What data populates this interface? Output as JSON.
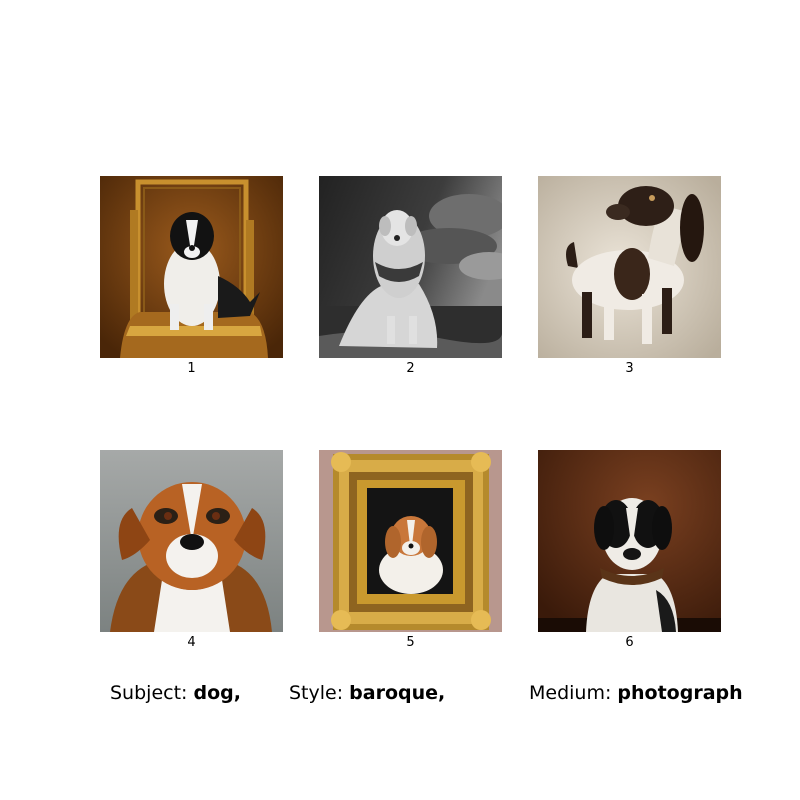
{
  "grid": {
    "captions": [
      "1",
      "2",
      "3",
      "4",
      "5",
      "6"
    ]
  },
  "prompt": {
    "subject_label": "Subject:",
    "subject_value": "dog,",
    "style_label": "Style:",
    "style_value": "baroque,",
    "medium_label": "Medium:",
    "medium_value": "photograph"
  }
}
